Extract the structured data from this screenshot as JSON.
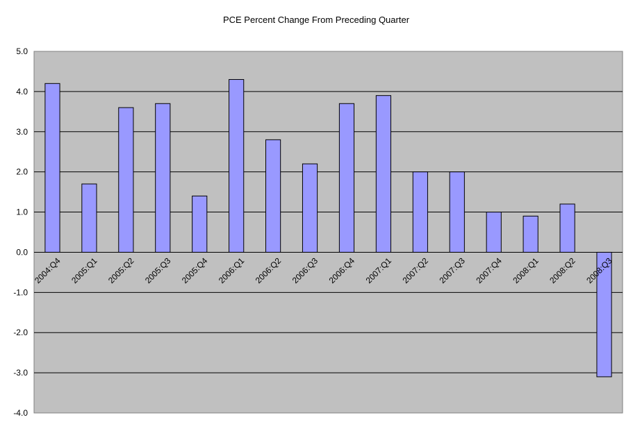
{
  "chart_data": {
    "type": "bar",
    "title": "PCE Percent Change From Preceding Quarter",
    "xlabel": "",
    "ylabel": "",
    "categories": [
      "2004:Q4",
      "2005:Q1",
      "2005:Q2",
      "2005:Q3",
      "2005:Q4",
      "2006:Q1",
      "2006:Q2",
      "2006:Q3",
      "2006:Q4",
      "2007:Q1",
      "2007:Q2",
      "2007:Q3",
      "2007:Q4",
      "2008:Q1",
      "2008:Q2",
      "2008:Q3"
    ],
    "values": [
      4.2,
      1.7,
      3.6,
      3.7,
      1.4,
      4.3,
      2.8,
      2.2,
      3.7,
      3.9,
      2.0,
      2.0,
      1.0,
      0.9,
      1.2,
      -3.1
    ],
    "ylim": [
      -4.0,
      5.0
    ],
    "yticks": [
      "5.0",
      "4.0",
      "3.0",
      "2.0",
      "1.0",
      "0.0",
      "-1.0",
      "-2.0",
      "-3.0",
      "-4.0"
    ],
    "grid": true,
    "legend": "none",
    "colors": {
      "plot_background": "#c0c0c0",
      "bar_fill": "#9999ff",
      "bar_stroke": "#000000",
      "gridline": "#000000"
    }
  }
}
